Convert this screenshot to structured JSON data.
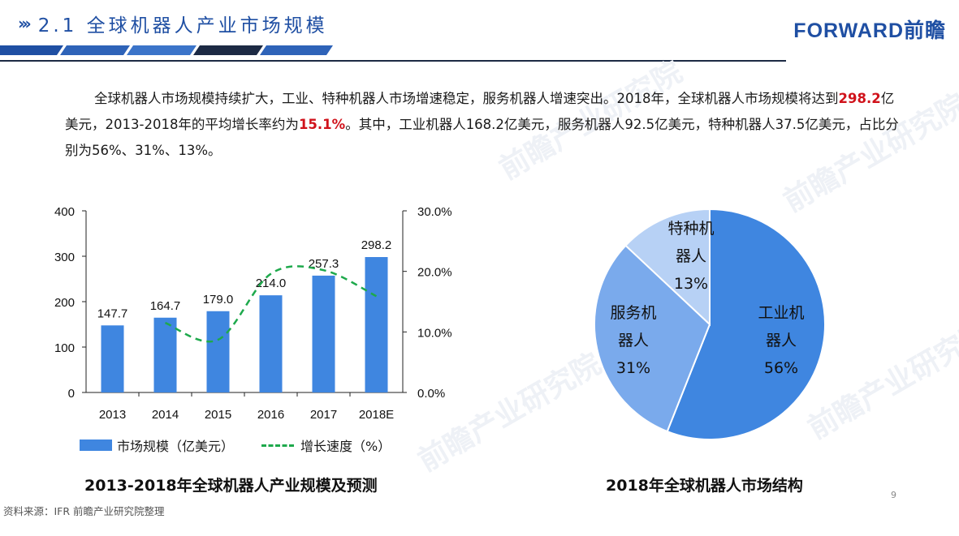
{
  "header": {
    "title": "2.1 全球机器人产业市场规模",
    "brand": "FORWARD前瞻",
    "watermark": "前瞻产业研究院"
  },
  "intro": {
    "part1": "全球机器人市场规模持续扩大，工业、特种机器人市场增速稳定，服务机器人增速突出。2018年，全球机器人市场规模将达到",
    "hl1": "298.2",
    "part2": "亿美元，2013-2018年的平均增长率约为",
    "hl2": "15.1%",
    "part3": "。其中，工业机器人168.2亿美元，服务机器人92.5亿美元，特种机器人37.5亿美元，占比分别为56%、31%、13%。"
  },
  "chart_data": [
    {
      "type": "bar",
      "title": "2013-2018年全球机器人产业规模及预测",
      "categories": [
        "2013",
        "2014",
        "2015",
        "2016",
        "2017",
        "2018E"
      ],
      "series": [
        {
          "name": "市场规模（亿美元）",
          "type": "bar",
          "axis": "left",
          "values": [
            147.7,
            164.7,
            179.0,
            214.0,
            257.3,
            298.2
          ],
          "color": "#3f86e0"
        },
        {
          "name": "增长速度（%）",
          "type": "line",
          "axis": "right",
          "style": "dashed",
          "values": [
            null,
            11.5,
            8.7,
            19.6,
            20.2,
            15.9
          ],
          "color": "#1ea94c"
        }
      ],
      "ylim": [
        0,
        400
      ],
      "yticks": [
        "0",
        "100",
        "200",
        "300",
        "400"
      ],
      "y2lim": [
        0,
        30
      ],
      "y2ticks": [
        "0.0%",
        "10.0%",
        "20.0%",
        "30.0%"
      ],
      "data_labels": [
        "147.7",
        "164.7",
        "179.0",
        "214.0",
        "257.3",
        "298.2"
      ],
      "legend": "bottom"
    },
    {
      "type": "pie",
      "title": "2018年全球机器人市场结构",
      "slices": [
        {
          "label": "工业机器人",
          "lines": [
            "工业机",
            "器人"
          ],
          "pct": "56%",
          "value": 56,
          "color": "#3f86e0"
        },
        {
          "label": "服务机器人",
          "lines": [
            "服务机",
            "器人"
          ],
          "pct": "31%",
          "value": 31,
          "color": "#7aaaec"
        },
        {
          "label": "特种机器人",
          "lines": [
            "特种机",
            "器人"
          ],
          "pct": "13%",
          "value": 13,
          "color": "#b7d1f5"
        }
      ]
    }
  ],
  "footer": {
    "source": "资料来源：IFR 前瞻产业研究院整理",
    "page": "9"
  }
}
